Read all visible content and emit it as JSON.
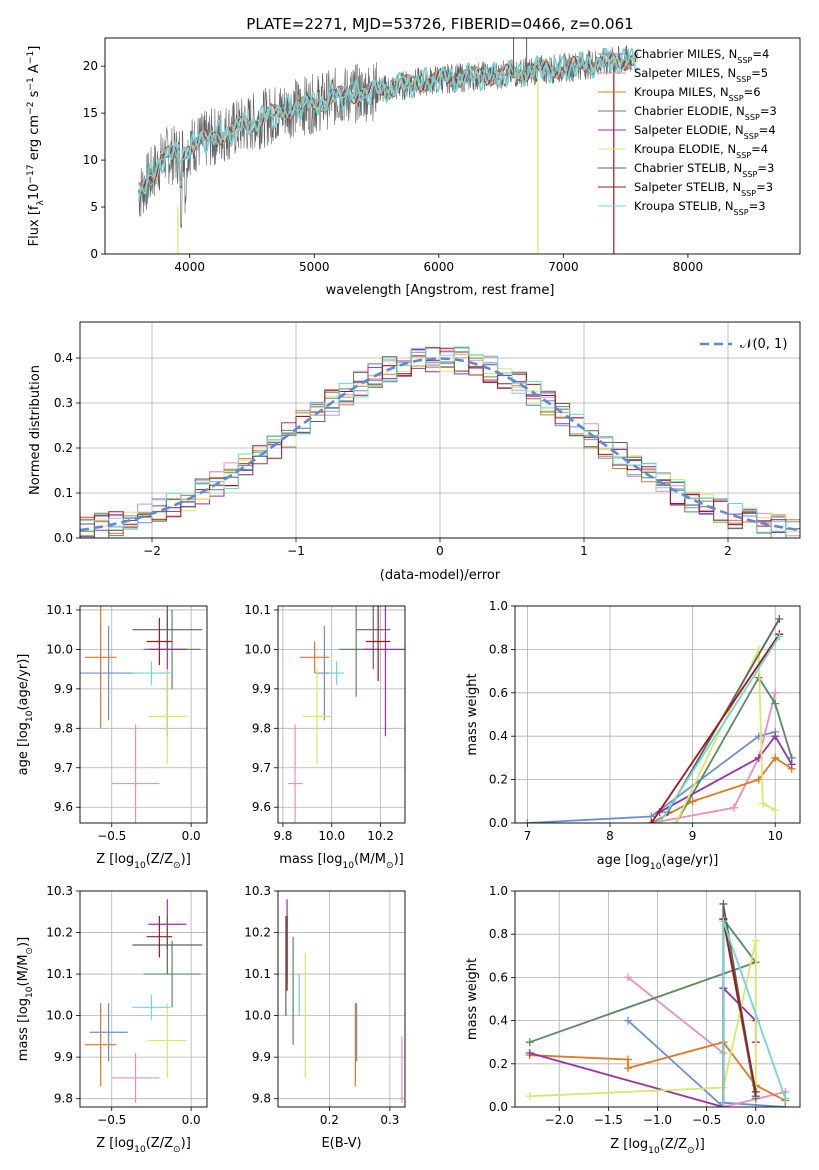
{
  "colors": [
    "#6a8fd8",
    "#e88fc0",
    "#e07820",
    "#5a8a62",
    "#9a30a8",
    "#d8e868",
    "#606060",
    "#a01818",
    "#6ed8d8"
  ],
  "chart_data": [
    {
      "id": "spectrum",
      "type": "line",
      "title": "PLATE=2271, MJD=53726, FIBERID=0466, z=0.061",
      "xlabel": "wavelength [Angstrom, rest frame]",
      "ylabel": "Flux [f",
      "ylabel_sub": "λ",
      "ylabel_rest": "10",
      "ylabel_exp": "−17",
      "ylabel_tail": " erg cm",
      "ylabel_exp2": "−2",
      "ylabel_tail2": " s",
      "ylabel_exp3": "−1",
      "ylabel_tail3": " A",
      "ylabel_exp4": "−1",
      "ylabel_end": "]",
      "xlim": [
        3320,
        8900
      ],
      "ylim": [
        0,
        23
      ],
      "xticks": [
        4000,
        5000,
        6000,
        7000,
        8000
      ],
      "yticks": [
        0,
        5,
        10,
        15,
        20
      ],
      "legend_position": "upper right",
      "legend": [
        {
          "name": "Chabrier MILES, N",
          "sub": "SSP",
          "val": "=4"
        },
        {
          "name": "Salpeter MILES, N",
          "sub": "SSP",
          "val": "=5"
        },
        {
          "name": "Kroupa MILES, N",
          "sub": "SSP",
          "val": "=6"
        },
        {
          "name": "Chabrier ELODIE, N",
          "sub": "SSP",
          "val": "=3"
        },
        {
          "name": "Salpeter ELODIE, N",
          "sub": "SSP",
          "val": "=4"
        },
        {
          "name": "Kroupa ELODIE, N",
          "sub": "SSP",
          "val": "=4"
        },
        {
          "name": "Chabrier STELIB, N",
          "sub": "SSP",
          "val": "=3"
        },
        {
          "name": "Salpeter STELIB, N",
          "sub": "SSP",
          "val": "=3"
        },
        {
          "name": "Kroupa STELIB, N",
          "sub": "SSP",
          "val": "=3"
        }
      ],
      "data_trend": {
        "x": [
          3600,
          3700,
          3800,
          3900,
          4000,
          4200,
          4400,
          4600,
          4800,
          5000,
          5200,
          5400,
          5600,
          5800,
          6000,
          6200,
          6400,
          6600,
          6800,
          7000,
          7200,
          7400,
          7600,
          7800,
          8000,
          8200,
          8400,
          8600
        ],
        "y": [
          6.5,
          8.5,
          10.5,
          10.5,
          11.5,
          12.5,
          13.5,
          14.5,
          15.5,
          16.0,
          16.8,
          17.2,
          17.6,
          18.2,
          18.6,
          18.8,
          19.0,
          19.2,
          19.6,
          19.8,
          20.2,
          20.5,
          20.8,
          21.0,
          21.2,
          21.3,
          21.4,
          21.5
        ]
      }
    },
    {
      "id": "residuals",
      "type": "step",
      "xlabel": "(data-model)/error",
      "ylabel": "Normed distribution",
      "xlim": [
        -2.5,
        2.5
      ],
      "ylim": [
        0,
        0.48
      ],
      "xticks": [
        -2,
        -1,
        0,
        1,
        2
      ],
      "xticklabels": [
        "−2",
        "−1",
        "0",
        "1",
        "2"
      ],
      "yticks": [
        0,
        0.1,
        0.2,
        0.3,
        0.4
      ],
      "yticklabels": [
        "0.0",
        "0.1",
        "0.2",
        "0.3",
        "0.4"
      ],
      "grid": true,
      "legend": "𝒩(0, 1)",
      "legend_position": "upper right"
    },
    {
      "id": "age_vs_Z",
      "type": "errorbar",
      "xlabel": "Z [log",
      "xlabel_sub": "10",
      "xlabel_tail": "(Z/Z",
      "xlabel_sub2": "⊙",
      "xlabel_end": ")]",
      "ylabel": "age  [log",
      "ylabel_sub": "10",
      "ylabel_tail": "(age/yr)]",
      "xlim": [
        -0.7,
        0.1
      ],
      "ylim": [
        9.56,
        10.11
      ],
      "xticks": [
        -0.5,
        0.0
      ],
      "xticklabels": [
        "−0.5",
        "0.0"
      ],
      "yticks": [
        9.6,
        9.7,
        9.8,
        9.9,
        10.0,
        10.1
      ],
      "yticklabels": [
        "9.6",
        "9.7",
        "9.8",
        "9.9",
        "10.0",
        "10.1"
      ],
      "points": [
        {
          "x": -0.52,
          "xerr": 0.18,
          "y": 9.94,
          "yerr": 0.12
        },
        {
          "x": -0.35,
          "xerr": 0.15,
          "y": 9.66,
          "yerr": 0.15
        },
        {
          "x": -0.57,
          "xerr": 0.1,
          "y": 9.98,
          "yerr": 0.18
        },
        {
          "x": -0.12,
          "xerr": 0.18,
          "y": 10.0,
          "yerr": 0.1
        },
        {
          "x": -0.15,
          "xerr": 0.12,
          "y": 10.0,
          "yerr": 0.22
        },
        {
          "x": -0.15,
          "xerr": 0.12,
          "y": 9.83,
          "yerr": 0.12
        },
        {
          "x": -0.15,
          "xerr": 0.22,
          "y": 10.05,
          "yerr": 0.05
        },
        {
          "x": -0.2,
          "xerr": 0.08,
          "y": 10.02,
          "yerr": 0.06
        },
        {
          "x": -0.25,
          "xerr": 0.12,
          "y": 9.94,
          "yerr": 0.03
        }
      ]
    },
    {
      "id": "age_vs_mass",
      "type": "errorbar",
      "xlabel": "mass [log",
      "xlabel_sub": "10",
      "xlabel_tail": "(M/M",
      "xlabel_sub2": "⊙",
      "xlabel_end": ")]",
      "xlim": [
        9.78,
        10.3
      ],
      "ylim": [
        9.56,
        10.11
      ],
      "xticks": [
        9.8,
        10.0,
        10.2
      ],
      "xticklabels": [
        "9.8",
        "10.0",
        "10.2"
      ],
      "yticks": [
        9.6,
        9.7,
        9.8,
        9.9,
        10.0,
        10.1
      ],
      "yticklabels": [
        "9.6",
        "9.7",
        "9.8",
        "9.9",
        "10.0",
        "10.1"
      ],
      "points": [
        {
          "x": 9.97,
          "xerr": 0.04,
          "y": 9.94,
          "yerr": 0.12
        },
        {
          "x": 9.85,
          "xerr": 0.03,
          "y": 9.66,
          "yerr": 0.15
        },
        {
          "x": 9.93,
          "xerr": 0.06,
          "y": 9.98,
          "yerr": 0.04
        },
        {
          "x": 10.1,
          "xerr": 0.07,
          "y": 10.0,
          "yerr": 0.12
        },
        {
          "x": 10.22,
          "xerr": 0.09,
          "y": 10.0,
          "yerr": 0.22
        },
        {
          "x": 9.94,
          "xerr": 0.06,
          "y": 9.83,
          "yerr": 0.12
        },
        {
          "x": 10.17,
          "xerr": 0.07,
          "y": 10.05,
          "yerr": 0.1
        },
        {
          "x": 10.19,
          "xerr": 0.05,
          "y": 10.02,
          "yerr": 0.1
        },
        {
          "x": 10.02,
          "xerr": 0.03,
          "y": 9.94,
          "yerr": 0.03
        }
      ]
    },
    {
      "id": "mass_weight_vs_age",
      "type": "line",
      "xlabel": "age  [log",
      "xlabel_sub": "10",
      "xlabel_tail": "(age/yr)]",
      "ylabel": "mass weight",
      "xlim": [
        6.85,
        10.3
      ],
      "ylim": [
        0,
        1
      ],
      "xticks": [
        7,
        8,
        9,
        10
      ],
      "xticklabels": [
        "7",
        "8",
        "9",
        "10"
      ],
      "yticks": [
        0,
        0.2,
        0.4,
        0.6,
        0.8,
        1.0
      ],
      "yticklabels": [
        "0.0",
        "0.2",
        "0.4",
        "0.6",
        "0.8",
        "1.0"
      ],
      "grid": true,
      "series": [
        {
          "x": [
            7.0,
            8.5,
            9.8,
            10.0
          ],
          "y": [
            0.0,
            0.03,
            0.4,
            0.42
          ]
        },
        {
          "x": [
            8.5,
            9.5,
            9.8,
            10.0
          ],
          "y": [
            0.0,
            0.07,
            0.3,
            0.6
          ]
        },
        {
          "x": [
            8.5,
            9.0,
            9.8,
            10.0,
            10.2
          ],
          "y": [
            0.0,
            0.1,
            0.2,
            0.3,
            0.25
          ]
        },
        {
          "x": [
            8.8,
            9.8,
            10.0,
            10.2
          ],
          "y": [
            0.0,
            0.67,
            0.55,
            0.3
          ]
        },
        {
          "x": [
            8.6,
            9.8,
            10.0,
            10.2
          ],
          "y": [
            0.05,
            0.3,
            0.4,
            0.27
          ]
        },
        {
          "x": [
            8.8,
            9.8,
            9.85,
            10.0
          ],
          "y": [
            0.0,
            0.8,
            0.09,
            0.06
          ]
        },
        {
          "x": [
            8.7,
            10.05
          ],
          "y": [
            0.05,
            0.94
          ]
        },
        {
          "x": [
            8.5,
            10.05
          ],
          "y": [
            0.0,
            0.87
          ]
        },
        {
          "x": [
            8.6,
            10.05
          ],
          "y": [
            0.0,
            0.86
          ]
        }
      ]
    },
    {
      "id": "mass_vs_Z",
      "type": "errorbar",
      "xlabel": "Z [log",
      "xlabel_sub": "10",
      "xlabel_tail": "(Z/Z",
      "xlabel_sub2": "⊙",
      "xlabel_end": ")]",
      "ylabel": "mass [log",
      "ylabel_sub": "10",
      "ylabel_tail": "(M/M",
      "ylabel_sub2": "⊙",
      "ylabel_end": ")]",
      "xlim": [
        -0.7,
        0.1
      ],
      "ylim": [
        9.78,
        10.3
      ],
      "xticks": [
        -0.5,
        0.0
      ],
      "xticklabels": [
        "−0.5",
        "0.0"
      ],
      "yticks": [
        9.8,
        9.9,
        10.0,
        10.1,
        10.2,
        10.3
      ],
      "yticklabels": [
        "9.8",
        "9.9",
        "10.0",
        "10.1",
        "10.2",
        "10.3"
      ],
      "points": [
        {
          "x": -0.52,
          "xerr": 0.12,
          "y": 9.96,
          "yerr": 0.07
        },
        {
          "x": -0.35,
          "xerr": 0.15,
          "y": 9.85,
          "yerr": 0.06
        },
        {
          "x": -0.57,
          "xerr": 0.1,
          "y": 9.93,
          "yerr": 0.1
        },
        {
          "x": -0.12,
          "xerr": 0.18,
          "y": 10.1,
          "yerr": 0.08
        },
        {
          "x": -0.15,
          "xerr": 0.12,
          "y": 10.22,
          "yerr": 0.06
        },
        {
          "x": -0.15,
          "xerr": 0.12,
          "y": 9.94,
          "yerr": 0.09
        },
        {
          "x": -0.15,
          "xerr": 0.22,
          "y": 10.17,
          "yerr": 0.07
        },
        {
          "x": -0.2,
          "xerr": 0.08,
          "y": 10.19,
          "yerr": 0.05
        },
        {
          "x": -0.25,
          "xerr": 0.12,
          "y": 10.02,
          "yerr": 0.03
        }
      ]
    },
    {
      "id": "mass_vs_ebv",
      "type": "errorbar",
      "xlabel": "E(B-V)",
      "xlim": [
        0.115,
        0.325
      ],
      "ylim": [
        9.78,
        10.3
      ],
      "xticks": [
        0.2,
        0.3
      ],
      "xticklabels": [
        "0.2",
        "0.3"
      ],
      "yticks": [
        9.8,
        9.9,
        10.0,
        10.1,
        10.2,
        10.3
      ],
      "yticklabels": [
        "9.8",
        "9.9",
        "10.0",
        "10.1",
        "10.2",
        "10.3"
      ],
      "points": [
        {
          "x": 0.245,
          "y": 9.96,
          "yerr": 0.07
        },
        {
          "x": 0.32,
          "y": 9.87,
          "yerr": 0.08
        },
        {
          "x": 0.243,
          "y": 9.93,
          "yerr": 0.1
        },
        {
          "x": 0.14,
          "y": 10.06,
          "yerr": 0.13
        },
        {
          "x": 0.13,
          "y": 10.18,
          "yerr": 0.1
        },
        {
          "x": 0.16,
          "y": 10.0,
          "yerr": 0.15
        },
        {
          "x": 0.128,
          "y": 10.12,
          "yerr": 0.12
        },
        {
          "x": 0.13,
          "y": 10.15,
          "yerr": 0.09
        },
        {
          "x": 0.15,
          "y": 10.05,
          "yerr": 0.05
        }
      ]
    },
    {
      "id": "mass_weight_vs_Z",
      "type": "line",
      "xlabel": "Z [log",
      "xlabel_sub": "10",
      "xlabel_tail": "(Z/Z",
      "xlabel_sub2": "⊙",
      "xlabel_end": ")]",
      "ylabel": "mass weight",
      "xlim": [
        -2.45,
        0.45
      ],
      "ylim": [
        0,
        1
      ],
      "xticks": [
        -2.0,
        -1.5,
        -1.0,
        -0.5,
        0.0
      ],
      "xticklabels": [
        "−2.0",
        "−1.5",
        "−1.0",
        "−0.5",
        "0.0"
      ],
      "yticks": [
        0,
        0.2,
        0.4,
        0.6,
        0.8,
        1.0
      ],
      "yticklabels": [
        "0.0",
        "0.2",
        "0.4",
        "0.6",
        "0.8",
        "1.0"
      ],
      "grid": true,
      "series": [
        {
          "x": [
            -1.3,
            -0.33,
            -0.33,
            0.3
          ],
          "y": [
            0.4,
            0.0,
            0.02,
            0.0
          ]
        },
        {
          "x": [
            -1.3,
            -0.33,
            -0.33,
            0.3,
            0.3
          ],
          "y": [
            0.6,
            0.25,
            0.0,
            0.07,
            0.03
          ]
        },
        {
          "x": [
            -2.3,
            -1.3,
            -1.3,
            -0.33,
            0.0,
            0.3
          ],
          "y": [
            0.24,
            0.22,
            0.18,
            0.3,
            0.1,
            0.03
          ]
        },
        {
          "x": [
            -2.3,
            0.0,
            -0.33,
            0.0
          ],
          "y": [
            0.3,
            0.67,
            0.87,
            0.04
          ]
        },
        {
          "x": [
            -2.3,
            -0.33,
            -0.33,
            0.0,
            0.0
          ],
          "y": [
            0.25,
            0.0,
            0.55,
            0.4,
            0.3
          ]
        },
        {
          "x": [
            -2.3,
            -0.33,
            0.0,
            0.0
          ],
          "y": [
            0.05,
            0.09,
            0.77,
            0.05
          ]
        },
        {
          "x": [
            -0.33,
            -0.33,
            0.0
          ],
          "y": [
            0.0,
            0.94,
            0.05
          ]
        },
        {
          "x": [
            -0.33,
            -0.33,
            0.0
          ],
          "y": [
            0.0,
            0.87,
            0.07
          ]
        },
        {
          "x": [
            -0.33,
            -0.33,
            0.3
          ],
          "y": [
            0.0,
            0.86,
            0.04
          ]
        }
      ]
    }
  ]
}
